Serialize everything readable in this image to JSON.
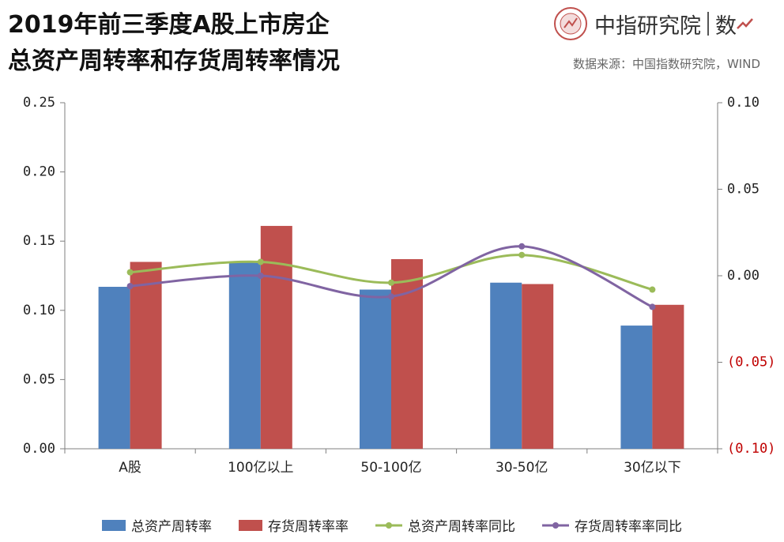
{
  "header": {
    "title_line1": "2019年前三季度A股上市房企",
    "title_line2": "总资产周转率和存货周转率情况",
    "logo_name": "中指研究院",
    "logo_suffix": "数",
    "source": "数据来源：中国指数研究院，WIND"
  },
  "colors": {
    "asset_bar": "#4F81BD",
    "inventory_bar": "#C0504D",
    "asset_line": "#9BBB59",
    "inventory_line": "#8064A2",
    "negative_tick": "#C00000",
    "axis": "#7f7f7f"
  },
  "chart_data": {
    "type": "bar",
    "categories": [
      "A股",
      "100亿以上",
      "50-100亿",
      "30-50亿",
      "30亿以下"
    ],
    "series": [
      {
        "name": "总资产周转率",
        "kind": "bar",
        "axis": "left",
        "values": [
          0.117,
          0.135,
          0.115,
          0.12,
          0.089
        ]
      },
      {
        "name": "存货周转率率",
        "kind": "bar",
        "axis": "left",
        "values": [
          0.135,
          0.161,
          0.137,
          0.119,
          0.104
        ]
      },
      {
        "name": "总资产周转率同比",
        "kind": "line",
        "axis": "right",
        "values": [
          0.002,
          0.008,
          -0.004,
          0.012,
          -0.008
        ]
      },
      {
        "name": "存货周转率率同比",
        "kind": "line",
        "axis": "right",
        "values": [
          -0.006,
          0.0,
          -0.012,
          0.017,
          -0.018
        ]
      }
    ],
    "left_axis": {
      "ylim": [
        0,
        0.25
      ],
      "ticks": [
        "0.25",
        "0.20",
        "0.15",
        "0.10",
        "0.05",
        "0.00"
      ],
      "tick_values": [
        0.25,
        0.2,
        0.15,
        0.1,
        0.05,
        0.0
      ]
    },
    "right_axis": {
      "ylim": [
        -0.1,
        0.1
      ],
      "ticks": [
        "0.10",
        "0.05",
        "0.00",
        "(0.05)",
        "(0.10)"
      ],
      "tick_values": [
        0.1,
        0.05,
        0.0,
        -0.05,
        -0.1
      ]
    },
    "grid": false,
    "legend_position": "bottom"
  }
}
